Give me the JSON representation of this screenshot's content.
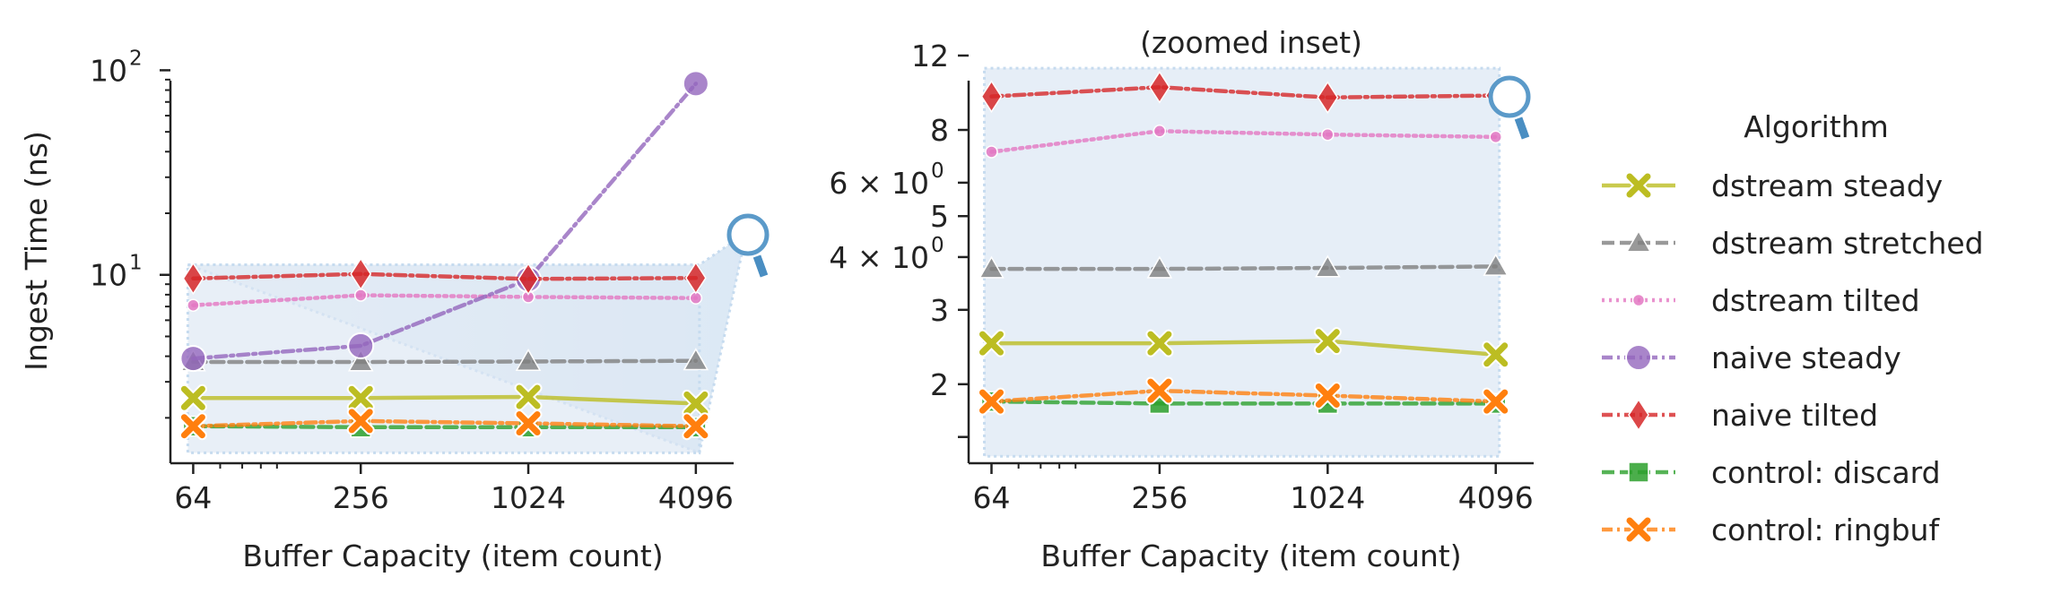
{
  "chart_data": [
    {
      "type": "line",
      "title": "",
      "xlabel": "Buffer Capacity (item count)",
      "ylabel": "Ingest Time (ns)",
      "x_scale": "log2",
      "y_scale": "log10",
      "x": [
        64,
        256,
        1024,
        4096
      ],
      "x_tick_labels": [
        "64",
        "256",
        "1024",
        "4096"
      ],
      "xlim": [
        53,
        5600
      ],
      "ylim": [
        1.2,
        118
      ],
      "y_ticks": [
        {
          "value": 10,
          "base": "10",
          "exp": "1"
        },
        {
          "value": 100,
          "base": "10",
          "exp": "2"
        }
      ],
      "inset_box": {
        "x": [
          64,
          4096
        ],
        "y": [
          1.35,
          11.2
        ]
      },
      "series": [
        {
          "name": "dstream steady",
          "color": "#bcbd22",
          "marker": "x",
          "dash": "solid",
          "values": [
            2.5,
            2.5,
            2.53,
            2.35
          ]
        },
        {
          "name": "dstream stretched",
          "color": "#7f7f7f",
          "marker": "triangle",
          "dash": "dashed",
          "values": [
            3.75,
            3.75,
            3.77,
            3.8
          ]
        },
        {
          "name": "dstream tilted",
          "color": "#e377c2",
          "marker": "dot",
          "dash": "dotted",
          "values": [
            7.1,
            7.95,
            7.8,
            7.7
          ]
        },
        {
          "name": "naive steady",
          "color": "#9467bd",
          "marker": "circle",
          "dash": "dashdot",
          "values": [
            3.9,
            4.5,
            9.5,
            86
          ]
        },
        {
          "name": "naive tilted",
          "color": "#d62728",
          "marker": "diamond",
          "dash": "dashdot",
          "values": [
            9.6,
            10.1,
            9.55,
            9.65
          ]
        },
        {
          "name": "control: discard",
          "color": "#2ca02c",
          "marker": "square",
          "dash": "dashed",
          "values": [
            1.82,
            1.8,
            1.8,
            1.8
          ]
        },
        {
          "name": "control: ringbuf",
          "color": "#ff7f0e",
          "marker": "x",
          "dash": "dashdot",
          "values": [
            1.82,
            1.93,
            1.88,
            1.82
          ]
        }
      ]
    },
    {
      "type": "line",
      "title": "(zoomed inset)",
      "xlabel": "Buffer Capacity (item count)",
      "ylabel": "",
      "x_scale": "log2",
      "y_scale": "log10",
      "x": [
        64,
        256,
        1024,
        4096
      ],
      "x_tick_labels": [
        "64",
        "256",
        "1024",
        "4096"
      ],
      "xlim": [
        53,
        5600
      ],
      "ylim": [
        1.3,
        12
      ],
      "y_ticks": [
        {
          "value": 2,
          "label": "2"
        },
        {
          "value": 3,
          "label": "3"
        },
        {
          "value": 4,
          "label": "4 × 10",
          "exp": "0"
        },
        {
          "value": 5,
          "label": "5"
        },
        {
          "value": 6,
          "label": "6 × 10",
          "exp": "0"
        },
        {
          "value": 8,
          "label": "8"
        },
        {
          "value": 12,
          "label": "12"
        }
      ],
      "inset_box": {
        "x": [
          64,
          4096
        ],
        "y": [
          1.35,
          11.2
        ]
      },
      "series_ref": "same as left panel"
    }
  ],
  "legend": {
    "title": "Algorithm",
    "placement": "right"
  }
}
